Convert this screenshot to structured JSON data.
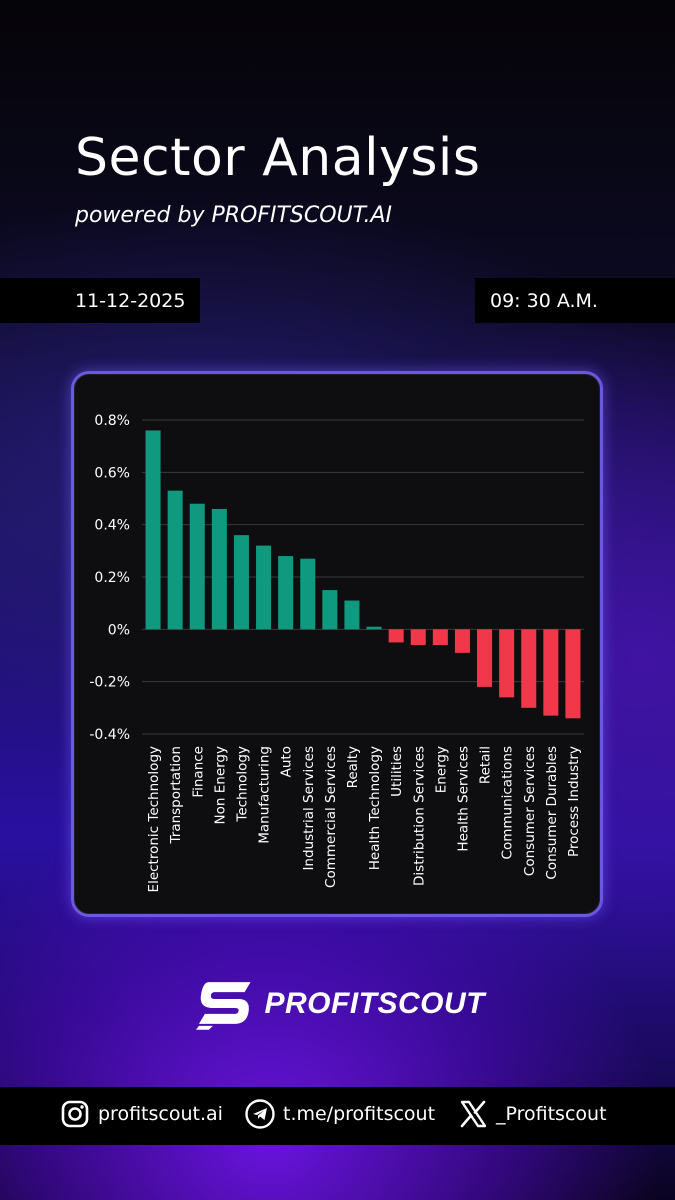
{
  "header": {
    "title": "Sector Analysis",
    "subtitle": "powered by PROFITSCOUT.AI",
    "date": "11-12-2025",
    "time": "09: 30 A.M."
  },
  "colors": {
    "positive": "#0f9a80",
    "negative": "#f0384a",
    "card_border": "#6b58e0"
  },
  "chart_data": {
    "type": "bar",
    "categories": [
      "Electronic Technology",
      "Transportation",
      "Finance",
      "Non Energy",
      "Technology",
      "Manufacturing",
      "Auto",
      "Industrial Services",
      "Commercial Services",
      "Realty",
      "Health Technology",
      "Utilities",
      "Distribution Services",
      "Energy",
      "Health Services",
      "Retail",
      "Communications",
      "Consumer Services",
      "Consumer Durables",
      "Process Industry"
    ],
    "values": [
      0.76,
      0.53,
      0.48,
      0.46,
      0.36,
      0.32,
      0.28,
      0.27,
      0.15,
      0.11,
      0.01,
      -0.05,
      -0.06,
      -0.06,
      -0.09,
      -0.22,
      -0.26,
      -0.3,
      -0.33,
      -0.34
    ],
    "y_ticks": [
      "0.8%",
      "0.6%",
      "0.4%",
      "0.2%",
      "0%",
      "-0.2%",
      "-0.4%"
    ],
    "ylim": [
      -0.4,
      0.8
    ],
    "grid": true,
    "legend": "none"
  },
  "brand": {
    "name": "PROFITSCOUT",
    "logo_icon": "profitscout-s-logo-icon"
  },
  "footer": {
    "items": [
      {
        "icon": "instagram-icon",
        "text": "profitscout.ai"
      },
      {
        "icon": "telegram-icon",
        "text": "t.me/profitscout"
      },
      {
        "icon": "x-icon",
        "text": "_Profitscout"
      }
    ]
  }
}
